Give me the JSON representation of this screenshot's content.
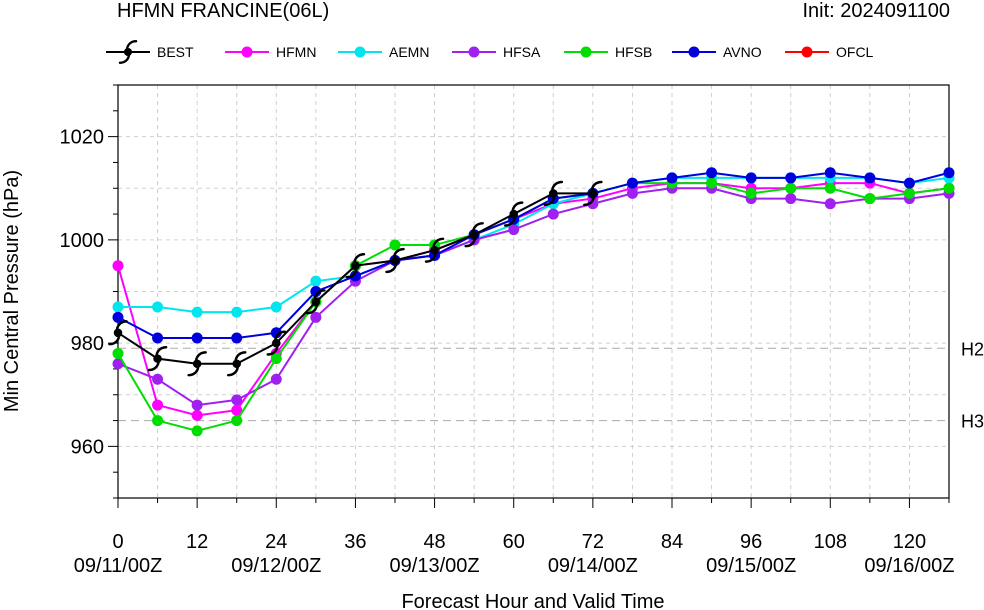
{
  "header": {
    "title": "HFMN FRANCINE(06L)",
    "init": "Init: 2024091100"
  },
  "chart_data": {
    "type": "line",
    "title": "HFMN FRANCINE(06L)",
    "xlabel": "Forecast Hour and Valid Time",
    "ylabel": "Min Central Pressure (hPa)",
    "xlim": [
      0,
      126
    ],
    "ylim": [
      950,
      1030
    ],
    "grid": true,
    "legend_position": "top",
    "x_ticks": [
      0,
      12,
      24,
      36,
      48,
      60,
      72,
      84,
      96,
      108,
      120
    ],
    "x_tick_dates": {
      "0": "09/11/00Z",
      "24": "09/12/00Z",
      "48": "09/13/00Z",
      "72": "09/14/00Z",
      "96": "09/15/00Z",
      "120": "09/16/00Z"
    },
    "y_ticks": [
      960,
      980,
      1000,
      1020
    ],
    "reference_lines": [
      {
        "label": "H2",
        "y": 979
      },
      {
        "label": "H3",
        "y": 965
      }
    ],
    "series": [
      {
        "name": "BEST",
        "color": "#000000",
        "marker": "hurricane",
        "x": [
          0,
          6,
          12,
          18,
          24,
          30,
          36,
          42,
          48,
          54,
          60,
          66,
          72
        ],
        "y": [
          982,
          977,
          976,
          976,
          980,
          988,
          995,
          996,
          998,
          1001,
          1005,
          1009,
          1009
        ]
      },
      {
        "name": "HFMN",
        "color": "#ff00ff",
        "marker": "circle",
        "x": [
          0,
          6,
          12,
          18,
          24,
          30,
          36,
          42,
          48,
          54,
          60,
          66,
          72,
          78,
          84,
          90,
          96,
          102,
          108,
          114,
          120,
          126
        ],
        "y": [
          995,
          968,
          966,
          967,
          978,
          988,
          995,
          996,
          998,
          1001,
          1004,
          1007,
          1008,
          1010,
          1011,
          1011,
          1010,
          1010,
          1011,
          1011,
          1009,
          1010
        ]
      },
      {
        "name": "AEMN",
        "color": "#00e5ee",
        "marker": "circle",
        "x": [
          0,
          6,
          12,
          18,
          24,
          30,
          36,
          42,
          48,
          54,
          60,
          66,
          72,
          78,
          84,
          90,
          96,
          102,
          108,
          114,
          120,
          126
        ],
        "y": [
          987,
          987,
          986,
          986,
          987,
          992,
          993,
          996,
          997,
          1000,
          1003,
          1007,
          1009,
          1011,
          1012,
          1012,
          1012,
          1012,
          1012,
          1012,
          1011,
          1012
        ]
      },
      {
        "name": "HFSA",
        "color": "#a020f0",
        "marker": "circle",
        "x": [
          0,
          6,
          12,
          18,
          24,
          30,
          36,
          42,
          48,
          54,
          60,
          66,
          72,
          78,
          84,
          90,
          96,
          102,
          108,
          114,
          120,
          126
        ],
        "y": [
          976,
          973,
          968,
          969,
          973,
          985,
          992,
          996,
          997,
          1000,
          1002,
          1005,
          1007,
          1009,
          1010,
          1010,
          1008,
          1008,
          1007,
          1008,
          1008,
          1009
        ]
      },
      {
        "name": "HFSB",
        "color": "#00dd00",
        "marker": "circle",
        "x": [
          0,
          6,
          12,
          18,
          24,
          30,
          36,
          42,
          48,
          54,
          60,
          66,
          72,
          78,
          84,
          90,
          96,
          102,
          108,
          114,
          120,
          126
        ],
        "y": [
          978,
          965,
          963,
          965,
          977,
          988,
          995,
          999,
          999,
          1001,
          1004,
          1008,
          1009,
          1011,
          1011,
          1011,
          1009,
          1010,
          1010,
          1008,
          1009,
          1010
        ]
      },
      {
        "name": "AVNO",
        "color": "#0000dd",
        "marker": "circle",
        "x": [
          0,
          6,
          12,
          18,
          24,
          30,
          36,
          42,
          48,
          54,
          60,
          66,
          72,
          78,
          84,
          90,
          96,
          102,
          108,
          114,
          120,
          126
        ],
        "y": [
          985,
          981,
          981,
          981,
          982,
          990,
          993,
          996,
          997,
          1001,
          1004,
          1008,
          1009,
          1011,
          1012,
          1013,
          1012,
          1012,
          1013,
          1012,
          1011,
          1013
        ]
      },
      {
        "name": "OFCL",
        "color": "#ff0000",
        "marker": "circle",
        "x": [],
        "y": []
      }
    ]
  }
}
